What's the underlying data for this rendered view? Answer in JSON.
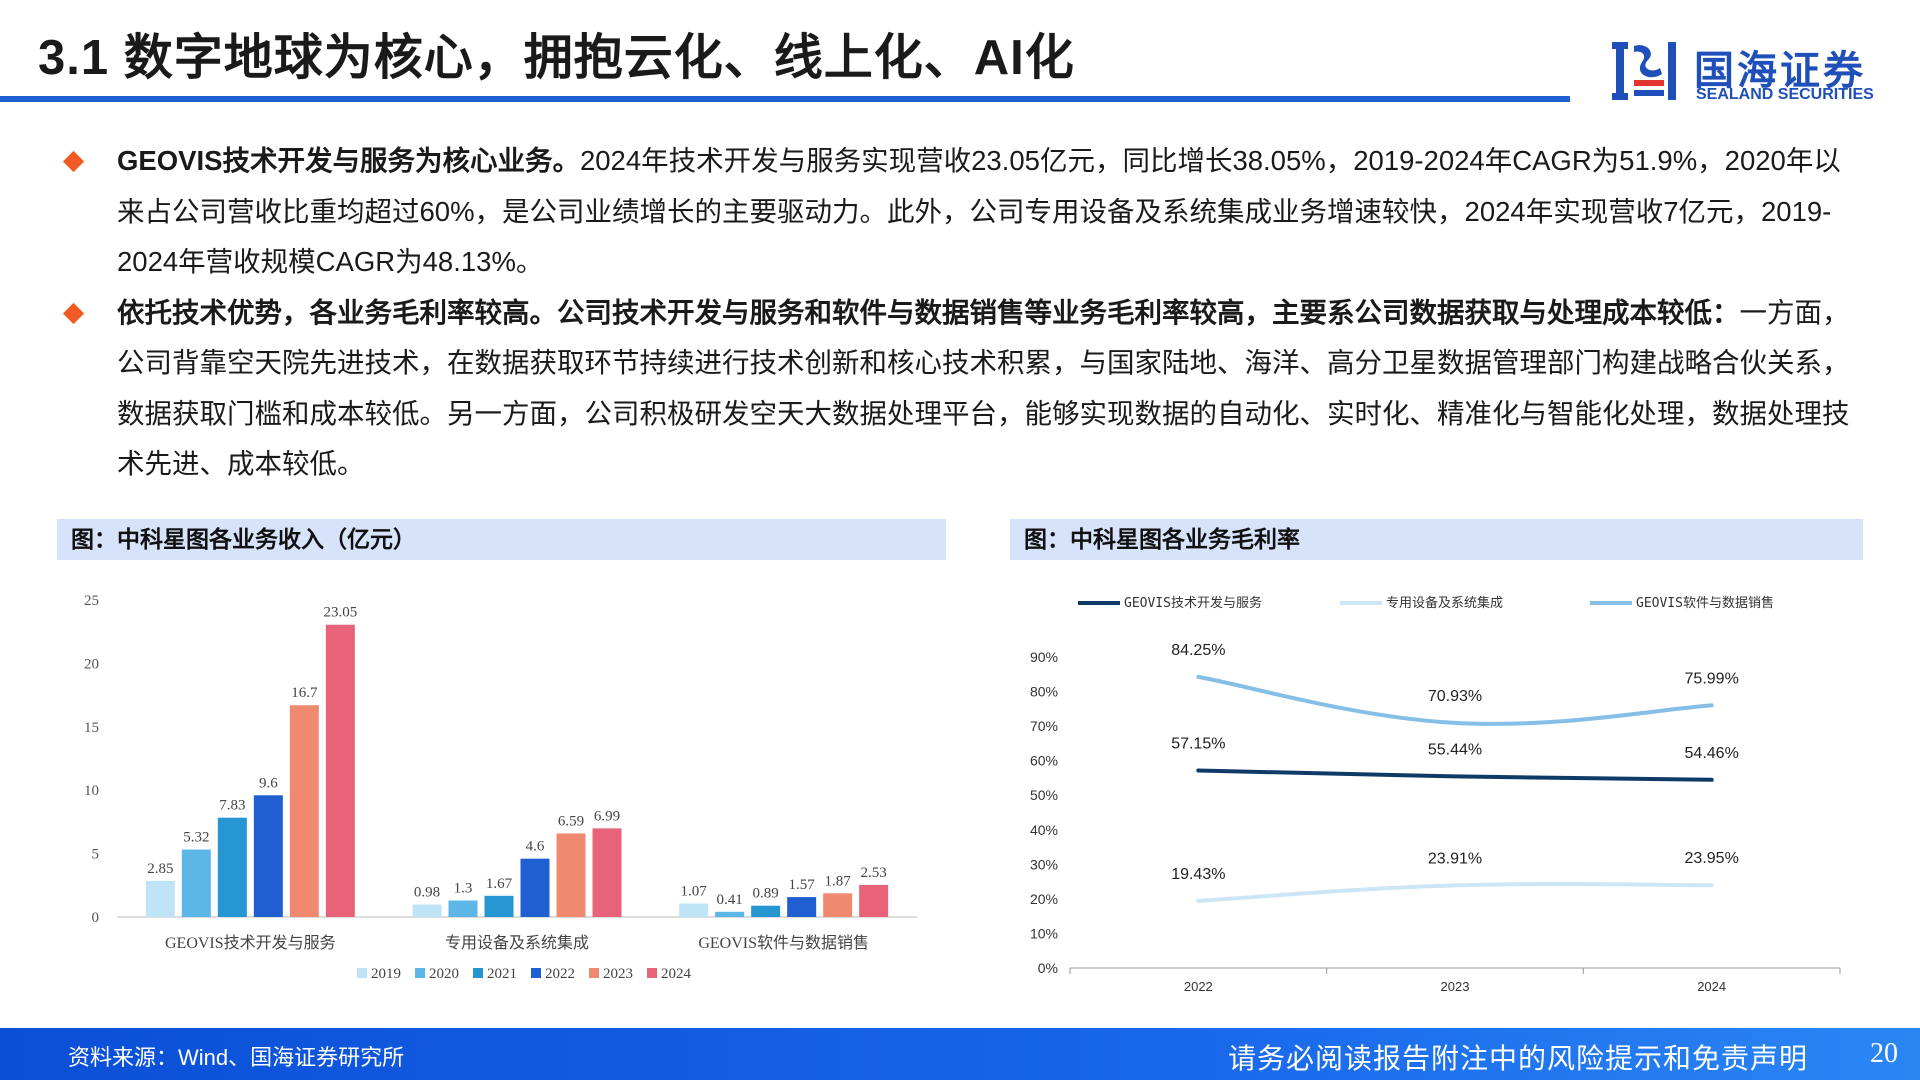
{
  "header": {
    "title": "3.1 数字地球为核心，拥抱云化、线上化、AI化",
    "logo_cn": "国海证券",
    "logo_en": "SEALAND SECURITIES"
  },
  "bullets": [
    {
      "lead": "GEOVIS技术开发与服务为核心业务。",
      "text": "2024年技术开发与服务实现营收23.05亿元，同比增长38.05%，2019-2024年CAGR为51.9%，2020年以来占公司营收比重均超过60%，是公司业绩增长的主要驱动力。此外，公司专用设备及系统集成业务增速较快，2024年实现营收7亿元，2019-2024年营收规模CAGR为48.13%。"
    },
    {
      "lead": "依托技术优势，各业务毛利率较高。公司技术开发与服务和软件与数据销售等业务毛利率较高，主要系公司数据获取与处理成本较低：",
      "text": "一方面，公司背靠空天院先进技术，在数据获取环节持续进行技术创新和核心技术积累，与国家陆地、海洋、高分卫星数据管理部门构建战略合伙关系，数据获取门槛和成本较低。另一方面，公司积极研发空天大数据处理平台，能够实现数据的自动化、实时化、精准化与智能化处理，数据处理技术先进、成本较低。"
    }
  ],
  "left_panel_title": "图：中科星图各业务收入（亿元）",
  "right_panel_title": "图：中科星图各业务毛利率",
  "chart_data": [
    {
      "type": "bar",
      "title": "图：中科星图各业务收入（亿元）",
      "categories": [
        "GEOVIS技术开发与服务",
        "专用设备及系统集成",
        "GEOVIS软件与数据销售"
      ],
      "series": [
        {
          "name": "2019",
          "color": "#bfe4f7",
          "values": [
            2.85,
            0.98,
            1.07
          ],
          "labels": [
            "2.85",
            "0.98",
            "1.07"
          ]
        },
        {
          "name": "2020",
          "color": "#5cb6e8",
          "values": [
            5.32,
            1.3,
            0.41
          ],
          "labels": [
            "5.32",
            "1.3",
            "0.41"
          ]
        },
        {
          "name": "2021",
          "color": "#2596d1",
          "values": [
            7.83,
            1.67,
            0.89
          ],
          "labels": [
            "7.83",
            "1.67",
            "0.89"
          ]
        },
        {
          "name": "2022",
          "color": "#1f5fd1",
          "values": [
            9.6,
            4.6,
            1.57
          ],
          "labels": [
            "9.6",
            "4.6",
            "1.57"
          ]
        },
        {
          "name": "2023",
          "color": "#ef8a70",
          "values": [
            16.7,
            6.59,
            1.87
          ],
          "labels": [
            "16.7",
            "6.59",
            "1.87"
          ]
        },
        {
          "name": "2024",
          "color": "#e8637a",
          "values": [
            23.05,
            6.99,
            2.53
          ],
          "labels": [
            "23.05",
            "6.99",
            "2.53"
          ]
        }
      ],
      "ylim": [
        0,
        25
      ],
      "yticks": [
        "0",
        "5",
        "10",
        "15",
        "20",
        "25"
      ],
      "legend": "bottom",
      "grid": false
    },
    {
      "type": "line",
      "title": "图：中科星图各业务毛利率",
      "x": [
        "2022",
        "2023",
        "2024"
      ],
      "series": [
        {
          "name": "GEOVIS技术开发与服务",
          "color": "#0f3a66",
          "values": [
            57.15,
            55.44,
            54.46
          ],
          "labels": [
            "57.15%",
            "55.44%",
            "54.46%"
          ]
        },
        {
          "name": "专用设备及系统集成",
          "color": "#cde6f6",
          "values": [
            19.43,
            23.91,
            23.95
          ],
          "labels": [
            "19.43%",
            "23.91%",
            "23.95%"
          ]
        },
        {
          "name": "GEOVIS软件与数据销售",
          "color": "#86bfe6",
          "values": [
            84.25,
            70.93,
            75.99
          ],
          "labels": [
            "84.25%",
            "70.93%",
            "75.99%"
          ]
        }
      ],
      "ylim": [
        0,
        90
      ],
      "yticks": [
        "0%",
        "10%",
        "20%",
        "30%",
        "40%",
        "50%",
        "60%",
        "70%",
        "80%",
        "90%"
      ],
      "legend": "top",
      "grid": false,
      "smooth": true
    }
  ],
  "footer": {
    "source": "资料来源：Wind、国海证券研究所",
    "disclaimer": "请务必阅读报告附注中的风险提示和免责声明",
    "page": "20"
  }
}
